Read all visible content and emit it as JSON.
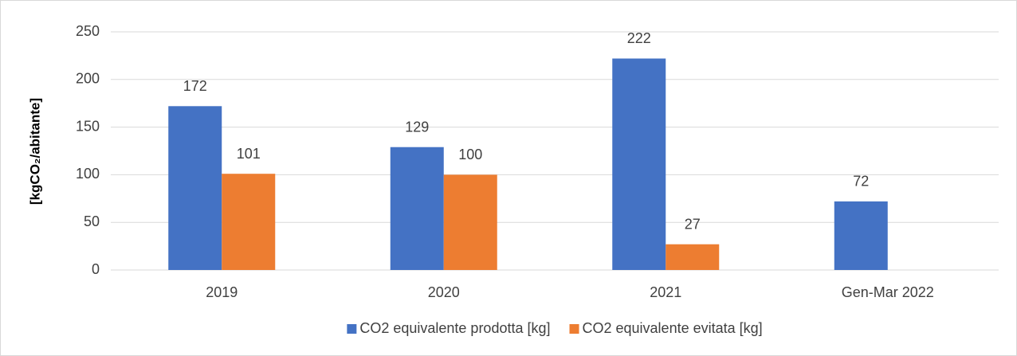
{
  "chart_data": {
    "type": "bar",
    "ylabel": "[kgCO₂/abitante]",
    "categories": [
      "2019",
      "2020",
      "2021",
      "Gen-Mar 2022"
    ],
    "series": [
      {
        "name": "CO2 equivalente prodotta [kg]",
        "color": "#4472c4",
        "values": [
          172,
          129,
          222,
          72
        ]
      },
      {
        "name": "CO2 equivalente evitata [kg]",
        "color": "#ed7d31",
        "values": [
          101,
          100,
          27,
          null
        ]
      }
    ],
    "ylim": [
      0,
      250
    ],
    "yticks": [
      0,
      50,
      100,
      150,
      200,
      250
    ],
    "grid": true,
    "legend": "bottom"
  }
}
